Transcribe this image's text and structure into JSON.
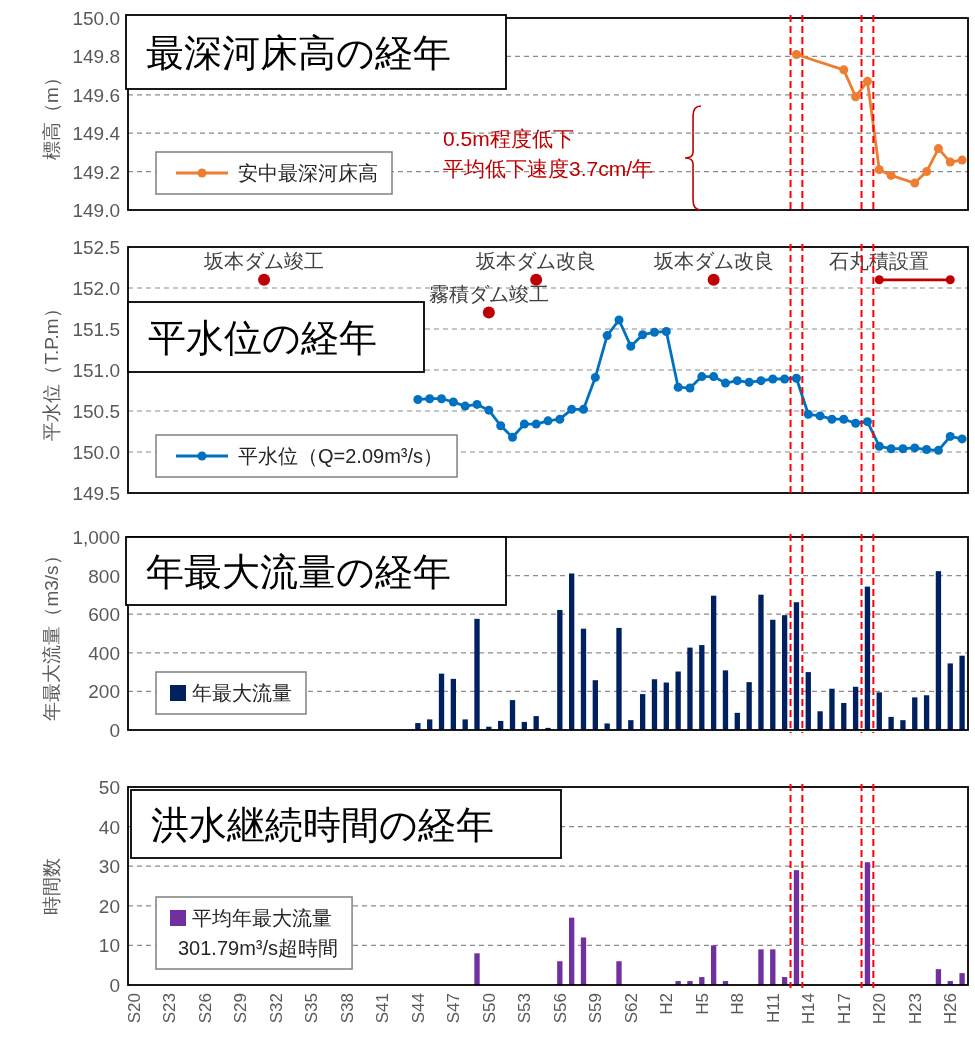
{
  "chart_data": [
    {
      "type": "line",
      "title": "最深河床高の経年",
      "ylabel": "標高（m）",
      "categories": [
        null,
        null,
        null,
        null,
        null,
        null,
        null,
        null,
        null,
        null,
        null,
        null,
        null,
        null,
        null,
        null,
        null,
        null,
        null,
        null,
        null,
        null,
        null,
        null,
        null,
        null,
        null,
        null,
        null,
        null,
        null,
        null,
        null,
        null,
        null,
        null,
        null,
        null,
        null,
        null,
        null,
        null,
        null,
        null,
        null,
        null,
        null,
        null,
        null,
        null,
        null,
        null,
        null,
        null,
        null,
        null,
        null,
        null,
        null,
        null,
        null,
        null,
        null,
        null,
        null,
        null,
        null,
        null,
        null,
        null,
        null
      ],
      "ylim": [
        149,
        150
      ],
      "yticks": [
        {
          "value": 149.0,
          "label": "149.0"
        },
        {
          "value": 149.2,
          "label": "149.2"
        },
        {
          "value": 149.4,
          "label": "149.4"
        },
        {
          "value": 149.6,
          "label": "149.6"
        },
        {
          "value": 149.8,
          "label": "149.8"
        },
        {
          "value": 150.0,
          "label": "150.0"
        }
      ],
      "tick_labels": "y",
      "grid": "y",
      "legend": "bottom left",
      "marker": "circle",
      "line_style": "solid",
      "series": [
        {
          "name": "安中最深河床高",
          "color": "#ed7d31",
          "values": [
            null,
            null,
            null,
            null,
            null,
            null,
            null,
            null,
            null,
            null,
            null,
            null,
            null,
            null,
            null,
            null,
            null,
            null,
            null,
            null,
            null,
            null,
            null,
            null,
            null,
            null,
            null,
            null,
            null,
            null,
            null,
            null,
            null,
            null,
            null,
            null,
            null,
            null,
            null,
            null,
            null,
            null,
            null,
            null,
            null,
            null,
            null,
            null,
            null,
            null,
            null,
            null,
            null,
            null,
            null,
            null,
            149.81,
            null,
            null,
            null,
            149.73,
            149.59,
            149.67,
            149.21,
            149.18,
            null,
            149.14,
            149.2,
            149.32,
            149.25,
            149.26
          ]
        }
      ],
      "annotations": [
        "0.5m程度低下",
        "平均低下速度3.7cm/年"
      ]
    },
    {
      "type": "line",
      "title": "平水位の経年",
      "ylabel": "平水位（T.P.m）",
      "categories": [
        null,
        null,
        null,
        null,
        null,
        null,
        null,
        null,
        null,
        null,
        null,
        null,
        null,
        null,
        null,
        null,
        null,
        null,
        null,
        null,
        null,
        null,
        null,
        null,
        null,
        null,
        null,
        null,
        null,
        null,
        null,
        null,
        null,
        null,
        null,
        null,
        null,
        null,
        null,
        null,
        null,
        null,
        null,
        null,
        null,
        null,
        null,
        null,
        null,
        null,
        null,
        null,
        null,
        null,
        null,
        null,
        null,
        null,
        null,
        null,
        null,
        null,
        null,
        null,
        null,
        null,
        null,
        null,
        null,
        null,
        null
      ],
      "ylim": [
        149.5,
        152.5
      ],
      "yticks": [
        {
          "value": 149.5,
          "label": "149.5"
        },
        {
          "value": 150,
          "label": "150.0"
        },
        {
          "value": 150.5,
          "label": "150.5"
        },
        {
          "value": 151,
          "label": "151.0"
        },
        {
          "value": 151.5,
          "label": "151.5"
        },
        {
          "value": 152,
          "label": "152.0"
        },
        {
          "value": 152.5,
          "label": "152.5"
        }
      ],
      "tick_labels": "y",
      "grid": "y",
      "legend": "bottom left",
      "marker": "circle",
      "line_style": "solid",
      "series": [
        {
          "name": "平水位（Q=2.09m³/s）",
          "color": "#0070c0",
          "values": [
            null,
            null,
            null,
            null,
            null,
            null,
            null,
            null,
            null,
            null,
            null,
            null,
            null,
            null,
            null,
            null,
            null,
            null,
            null,
            null,
            null,
            null,
            null,
            null,
            150.64,
            150.65,
            150.65,
            150.61,
            150.56,
            150.58,
            150.51,
            150.32,
            150.18,
            150.34,
            150.34,
            150.38,
            150.4,
            150.52,
            150.52,
            150.91,
            151.42,
            151.61,
            151.29,
            151.43,
            151.46,
            151.47,
            150.79,
            150.78,
            150.92,
            150.92,
            150.84,
            150.87,
            150.85,
            150.87,
            150.89,
            150.89,
            150.9,
            150.46,
            150.44,
            150.4,
            150.4,
            150.35,
            150.37,
            150.07,
            150.04,
            150.04,
            150.05,
            150.03,
            150.02,
            150.19,
            150.16
          ]
        },
        {
          "type": "scatter",
          "color": "#c00000",
          "values": [
            null,
            null,
            null,
            null,
            null,
            null,
            null,
            null,
            null,
            null,
            null,
            152.1,
            null,
            null,
            null,
            null,
            null,
            null,
            null,
            null,
            null,
            null,
            null,
            null,
            null,
            null,
            null,
            null,
            null,
            null,
            151.7,
            null,
            null,
            null,
            152.1,
            null,
            null,
            null,
            null,
            null,
            null,
            null,
            null,
            null,
            null,
            null,
            null,
            null,
            null,
            152.1,
            null,
            null,
            null,
            null,
            null,
            null,
            null,
            null,
            null,
            null,
            null,
            null,
            null,
            null,
            null,
            null,
            null,
            null,
            null,
            null,
            null
          ],
          "value_labels": [
            null,
            null,
            null,
            null,
            null,
            null,
            null,
            null,
            null,
            null,
            null,
            "坂本ダム竣工",
            null,
            null,
            null,
            null,
            null,
            null,
            null,
            null,
            null,
            null,
            null,
            null,
            null,
            null,
            null,
            null,
            null,
            null,
            "霧積ダム竣工",
            null,
            null,
            null,
            "坂本ダム改良",
            null,
            null,
            null,
            null,
            null,
            null,
            null,
            null,
            null,
            null,
            null,
            null,
            null,
            null,
            "坂本ダム改良",
            null,
            null,
            null,
            null,
            null,
            null,
            null,
            null,
            null,
            null,
            null,
            null,
            null,
            null,
            null,
            null,
            null,
            null,
            null,
            null,
            null
          ]
        },
        {
          "type": "line",
          "color": "#c00000",
          "values": [
            null,
            null,
            null,
            null,
            null,
            null,
            null,
            null,
            null,
            null,
            null,
            null,
            null,
            null,
            null,
            null,
            null,
            null,
            null,
            null,
            null,
            null,
            null,
            null,
            null,
            null,
            null,
            null,
            null,
            null,
            null,
            null,
            null,
            null,
            null,
            null,
            null,
            null,
            null,
            null,
            null,
            null,
            null,
            null,
            null,
            null,
            null,
            null,
            null,
            null,
            null,
            null,
            null,
            null,
            null,
            null,
            null,
            null,
            null,
            null,
            null,
            null,
            null,
            152.1,
            null,
            null,
            null,
            null,
            null,
            152.1,
            null
          ],
          "value_labels": [
            null,
            null,
            null,
            null,
            null,
            null,
            null,
            null,
            null,
            null,
            null,
            null,
            null,
            null,
            null,
            null,
            null,
            null,
            null,
            null,
            null,
            null,
            null,
            null,
            null,
            null,
            null,
            null,
            null,
            null,
            null,
            null,
            null,
            null,
            null,
            null,
            null,
            null,
            null,
            null,
            null,
            null,
            null,
            null,
            null,
            null,
            null,
            null,
            null,
            null,
            null,
            null,
            null,
            null,
            null,
            null,
            null,
            null,
            null,
            null,
            null,
            null,
            null,
            "石丸積設置",
            null,
            null,
            null,
            null,
            null,
            null,
            null
          ]
        }
      ]
    },
    {
      "type": "bar",
      "title": "年最大流量の経年",
      "ylabel": "年最大流量（m3/s）",
      "categories": [
        null,
        null,
        null,
        null,
        null,
        null,
        null,
        null,
        null,
        null,
        null,
        null,
        null,
        null,
        null,
        null,
        null,
        null,
        null,
        null,
        null,
        null,
        null,
        null,
        null,
        null,
        null,
        null,
        null,
        null,
        null,
        null,
        null,
        null,
        null,
        null,
        null,
        null,
        null,
        null,
        null,
        null,
        null,
        null,
        null,
        null,
        null,
        null,
        null,
        null,
        null,
        null,
        null,
        null,
        null,
        null,
        null,
        null,
        null,
        null,
        null,
        null,
        null,
        null,
        null,
        null,
        null,
        null,
        null,
        null,
        null
      ],
      "ylim": [
        0,
        1000
      ],
      "yticks": [
        0,
        200,
        400,
        600,
        800,
        {
          "value": 1000,
          "label": "1,000"
        }
      ],
      "tick_labels": "y",
      "grid": "y",
      "legend": "bottom left",
      "series": [
        {
          "name": "年最大流量",
          "color": "#002060",
          "values": [
            null,
            null,
            null,
            null,
            null,
            null,
            null,
            null,
            null,
            null,
            null,
            null,
            null,
            null,
            null,
            null,
            null,
            null,
            null,
            null,
            null,
            null,
            null,
            null,
            36,
            55,
            292,
            265,
            55,
            576,
            17,
            47,
            155,
            42,
            72,
            11,
            622,
            811,
            525,
            258,
            34,
            529,
            51,
            186,
            263,
            246,
            303,
            427,
            440,
            696,
            309,
            89,
            248,
            701,
            571,
            595,
            662,
            300,
            97,
            214,
            140,
            224,
            743,
            195,
            68,
            51,
            169,
            180,
            823,
            345,
            385
          ]
        }
      ]
    },
    {
      "type": "bar",
      "title": "洪水継続時間の経年",
      "ylabel": "時間数",
      "categories": [
        "S20",
        null,
        null,
        "S23",
        null,
        null,
        "S26",
        null,
        null,
        "S29",
        null,
        null,
        "S32",
        null,
        null,
        "S35",
        null,
        null,
        "S38",
        null,
        null,
        "S41",
        null,
        null,
        "S44",
        null,
        null,
        "S47",
        null,
        null,
        "S50",
        null,
        null,
        "S53",
        null,
        null,
        "S56",
        null,
        null,
        "S59",
        null,
        null,
        "S62",
        null,
        null,
        "H2",
        null,
        null,
        "H5",
        null,
        null,
        "H8",
        null,
        null,
        "H11",
        null,
        null,
        "H14",
        null,
        null,
        "H17",
        null,
        null,
        "H20",
        null,
        null,
        "H23",
        null,
        null,
        "H26",
        null
      ],
      "ylim": [
        0,
        50
      ],
      "yticks": [
        0,
        10,
        20,
        30,
        40,
        50
      ],
      "grid": "y",
      "legend": "bottom left",
      "series": [
        {
          "name": "平均年最大流量\n301.79m³/s超時間",
          "color": "#7030a0",
          "values": [
            null,
            null,
            null,
            null,
            null,
            null,
            null,
            null,
            null,
            null,
            null,
            null,
            null,
            null,
            null,
            null,
            null,
            null,
            null,
            null,
            null,
            null,
            null,
            null,
            0,
            0,
            0,
            0,
            0,
            8,
            0,
            0,
            0,
            0,
            0,
            0,
            6,
            17,
            12,
            0,
            0,
            6,
            0,
            0,
            0,
            0,
            1,
            1,
            2,
            10,
            1,
            0,
            0,
            9,
            9,
            2,
            29,
            0,
            0,
            0,
            0,
            0,
            31,
            0,
            0,
            0,
            0,
            0,
            4,
            1,
            3
          ]
        }
      ]
    }
  ]
}
